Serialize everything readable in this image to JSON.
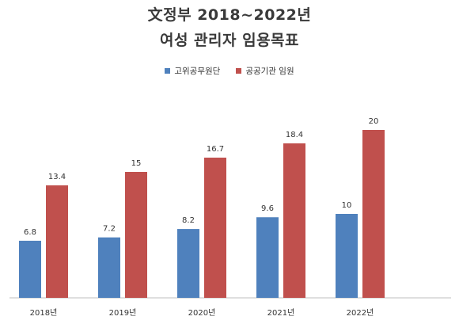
{
  "chart_data": {
    "type": "bar",
    "title": "文정부 2018~2022년",
    "subtitle": "여성 관리자 임용목표",
    "xlabel": "",
    "ylabel": "",
    "categories": [
      "2018년",
      "2019년",
      "2020년",
      "2021년",
      "2022년"
    ],
    "series": [
      {
        "name": "고위공무원단",
        "values": [
          6.8,
          7.2,
          8.2,
          9.6,
          10
        ],
        "color": "#4f81bd"
      },
      {
        "name": "공공기관 임원",
        "values": [
          13.4,
          15,
          16.7,
          18.4,
          20
        ],
        "color": "#c0504d"
      }
    ],
    "ylim": [
      0,
      20
    ],
    "grid": false,
    "legend_position": "top-center"
  }
}
